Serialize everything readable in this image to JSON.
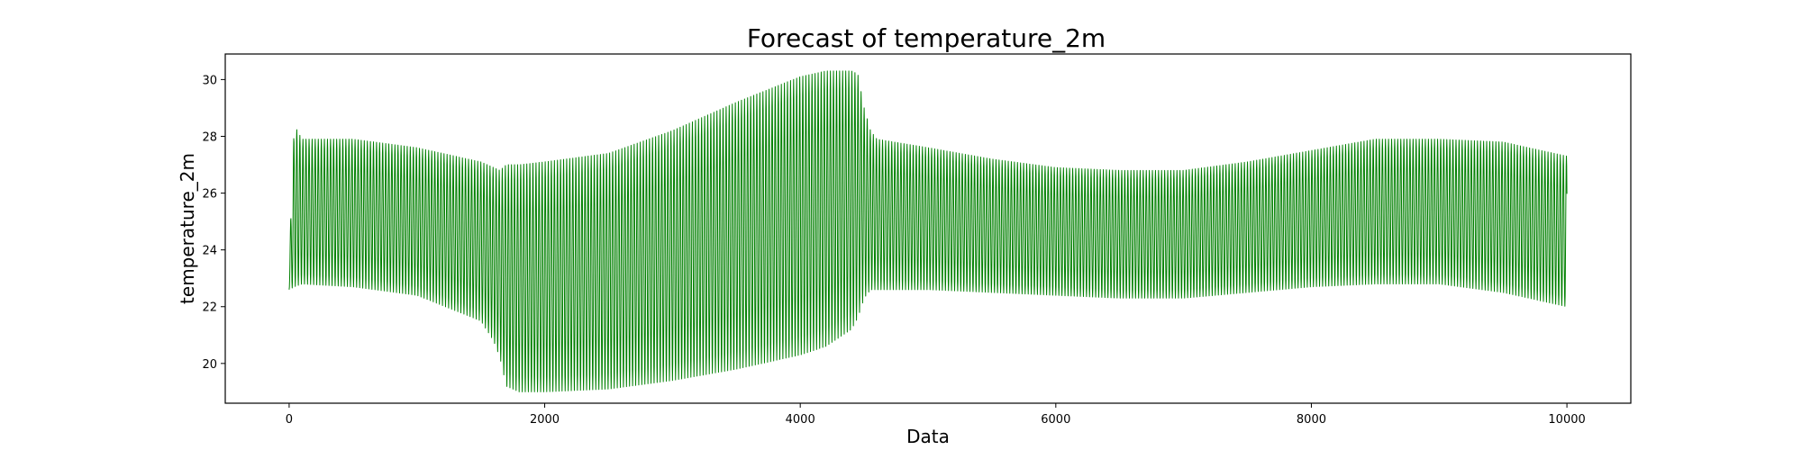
{
  "chart_data": {
    "type": "line",
    "title": "Forecast of temperature_2m",
    "xlabel": "Data",
    "ylabel": "temperature_2m",
    "xlim": [
      -500,
      10500
    ],
    "ylim": [
      18.6,
      30.9
    ],
    "xticks": [
      0,
      2000,
      4000,
      6000,
      8000,
      10000
    ],
    "yticks": [
      20,
      22,
      24,
      26,
      28,
      30
    ],
    "grid": false,
    "series": [
      {
        "color": "#008000",
        "cycle_length": 24,
        "x_range": [
          0,
          10000
        ],
        "envelope_x": [
          0,
          40,
          100,
          500,
          1000,
          1500,
          1600,
          1650,
          1700,
          1800,
          2000,
          2500,
          3000,
          3500,
          4000,
          4200,
          4400,
          4450,
          4500,
          4550,
          4600,
          5000,
          5500,
          6000,
          6500,
          7000,
          7500,
          8000,
          8500,
          9000,
          9500,
          10000
        ],
        "envelope_upper": [
          23.6,
          28.4,
          27.9,
          27.9,
          27.6,
          27.1,
          26.9,
          26.8,
          27.0,
          27.0,
          27.1,
          27.4,
          28.2,
          29.2,
          30.1,
          30.3,
          30.3,
          30.2,
          29.0,
          28.2,
          27.9,
          27.6,
          27.2,
          26.9,
          26.8,
          26.8,
          27.1,
          27.5,
          27.9,
          27.9,
          27.8,
          27.3
        ],
        "envelope_lower": [
          22.6,
          22.7,
          22.8,
          22.7,
          22.4,
          21.5,
          20.8,
          20.2,
          19.2,
          19.0,
          19.0,
          19.1,
          19.4,
          19.8,
          20.3,
          20.6,
          21.2,
          21.6,
          22.3,
          22.6,
          22.6,
          22.6,
          22.5,
          22.4,
          22.3,
          22.3,
          22.5,
          22.7,
          22.8,
          22.8,
          22.5,
          22.0
        ]
      }
    ]
  }
}
